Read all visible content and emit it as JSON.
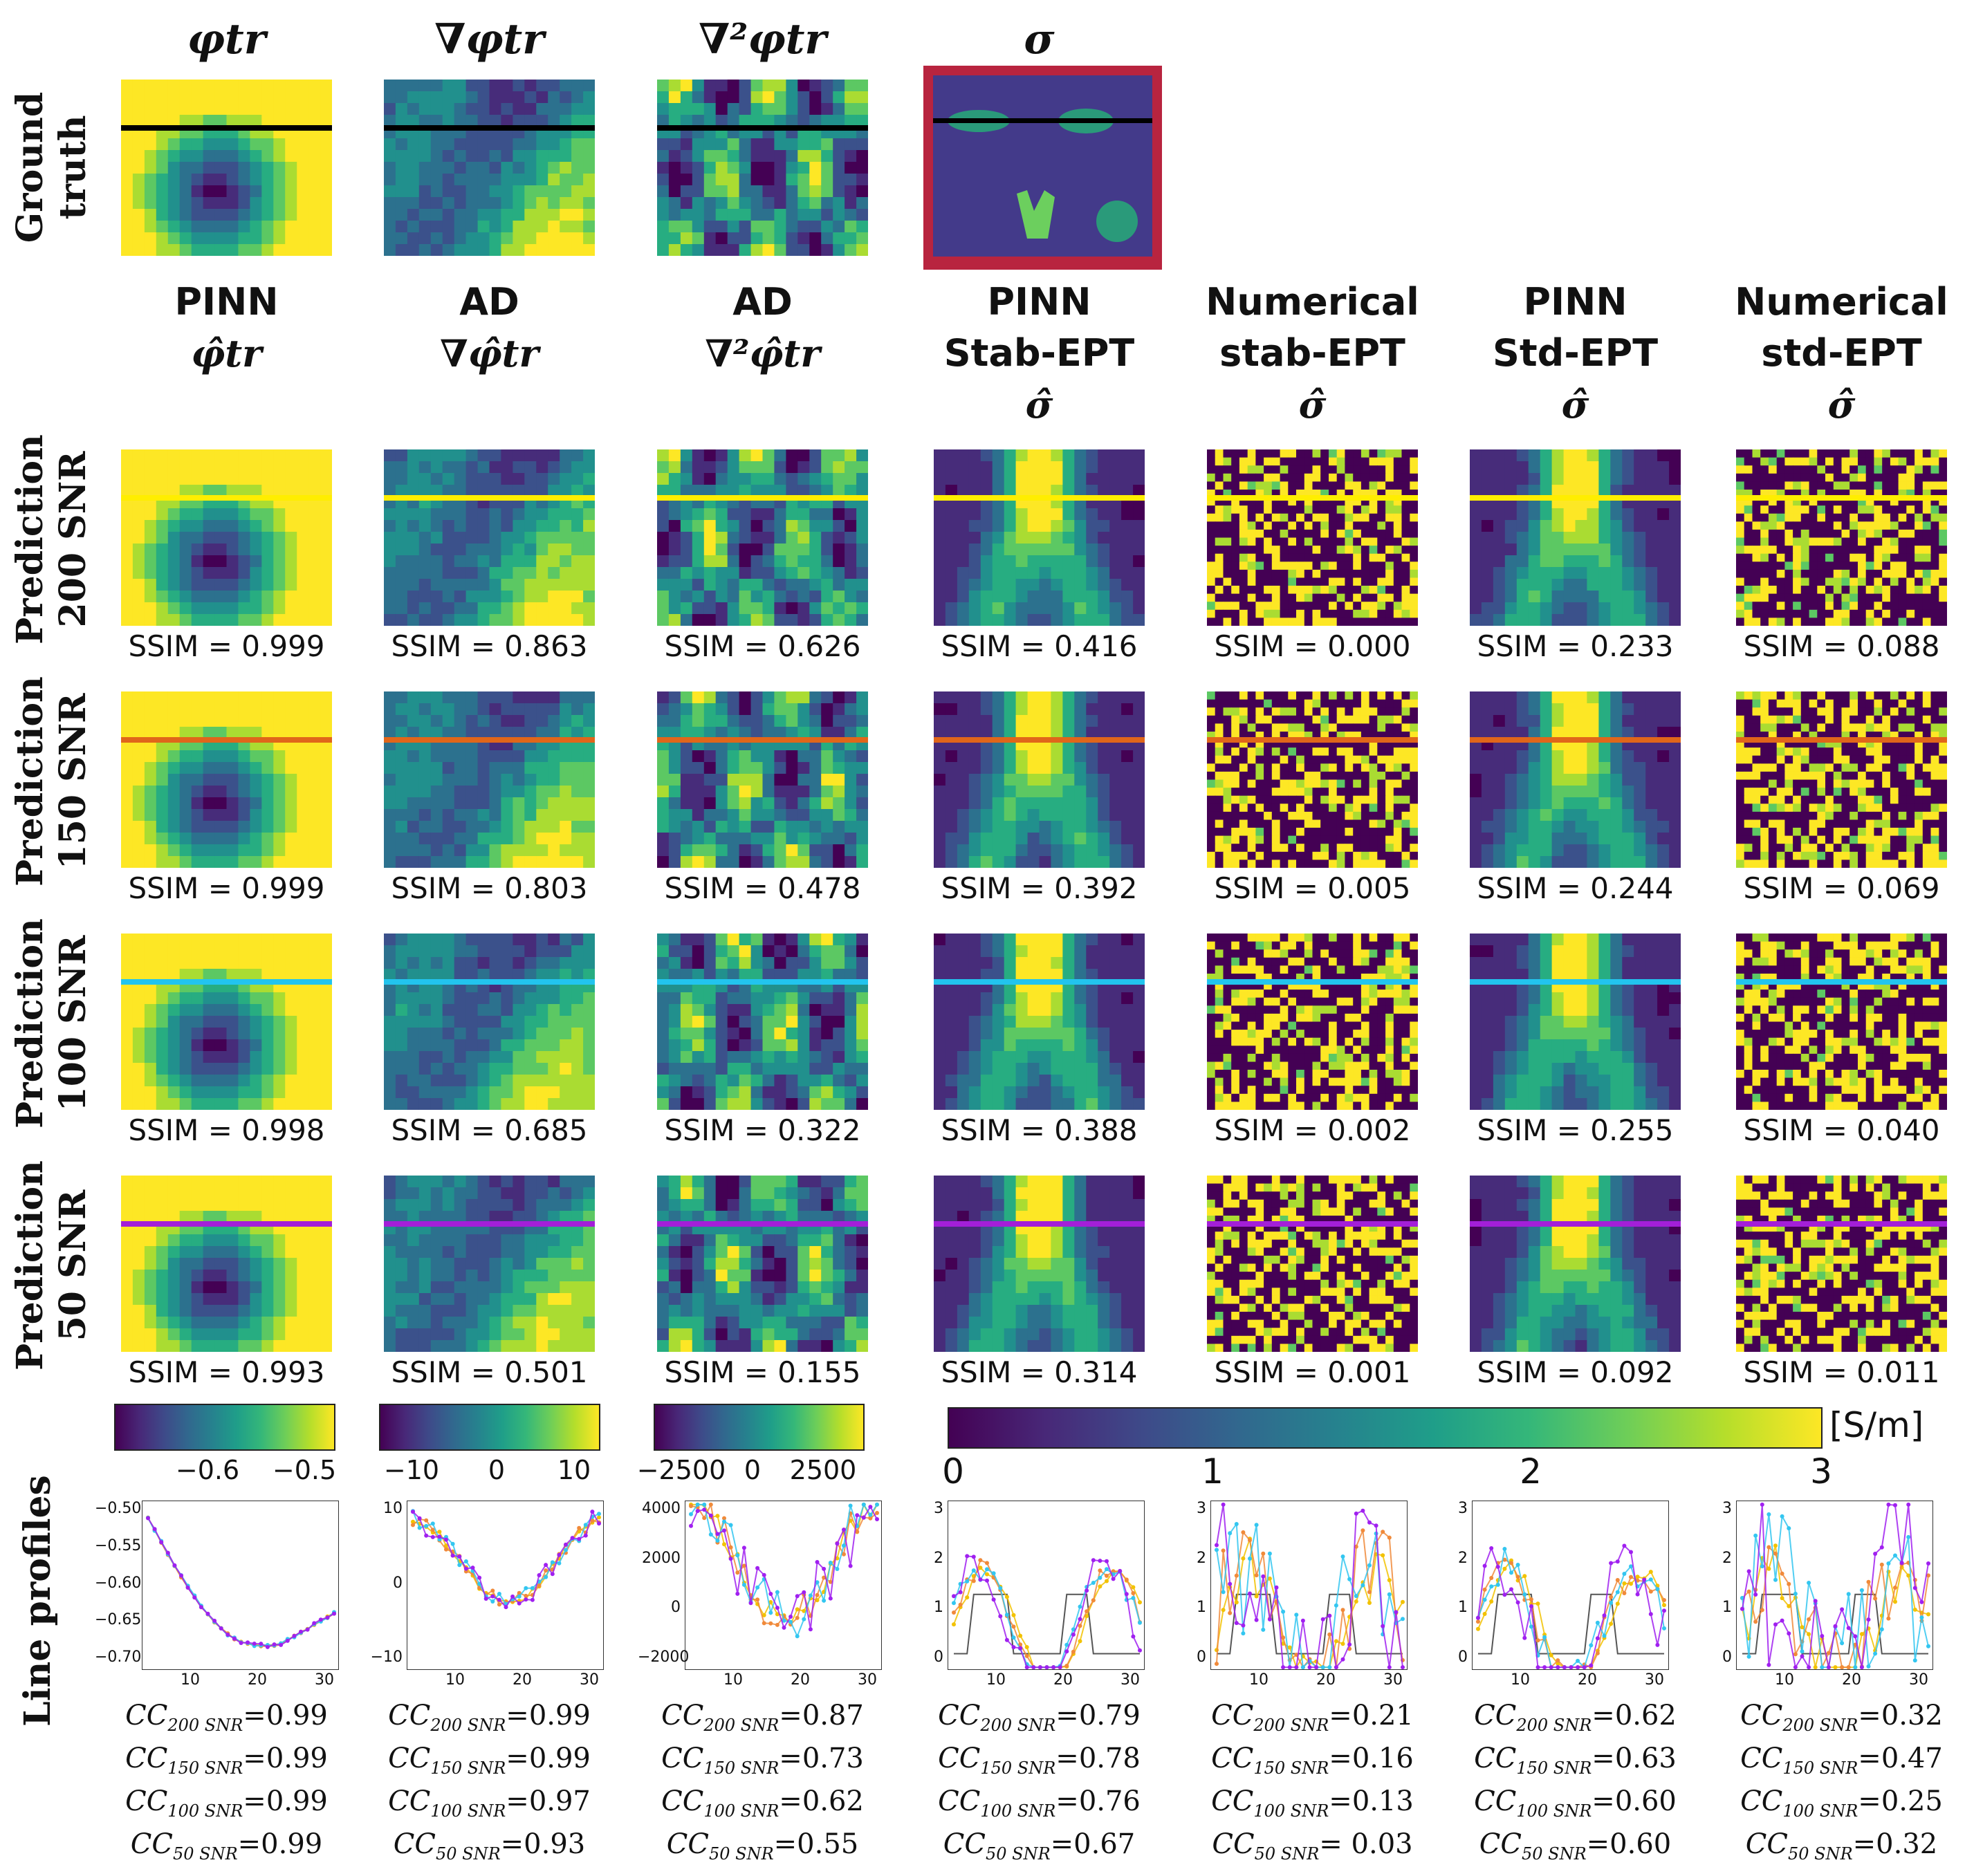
{
  "ground_truth": {
    "row_label": [
      "Ground",
      "truth"
    ],
    "headers": [
      "φtr",
      "∇φtr",
      "∇²φtr",
      "σ"
    ]
  },
  "columns": [
    {
      "line1": "",
      "line2": "PINN",
      "symbol": "φ̂tr"
    },
    {
      "line1": "",
      "line2": "AD",
      "symbol": "∇φ̂tr"
    },
    {
      "line1": "",
      "line2": "AD",
      "symbol": "∇²φ̂tr"
    },
    {
      "line1": "PINN",
      "line2": "Stab-EPT",
      "symbol": "σ̂"
    },
    {
      "line1": "Numerical",
      "line2": "stab-EPT",
      "symbol": "σ̂"
    },
    {
      "line1": "PINN",
      "line2": "Std-EPT",
      "symbol": "σ̂"
    },
    {
      "line1": "Numerical",
      "line2": "std-EPT",
      "symbol": "σ̂"
    }
  ],
  "rows": [
    {
      "label": [
        "Prediction",
        "200 SNR"
      ],
      "line_color": "#ffee00",
      "ssim": [
        "SSIM = 0.999",
        "SSIM = 0.863",
        "SSIM = 0.626",
        "SSIM = 0.416",
        "SSIM = 0.000",
        "SSIM = 0.233",
        "SSIM = 0.088"
      ]
    },
    {
      "label": [
        "Prediction",
        "150 SNR"
      ],
      "line_color": "#e0661a",
      "ssim": [
        "SSIM = 0.999",
        "SSIM = 0.803",
        "SSIM = 0.478",
        "SSIM = 0.392",
        "SSIM = 0.005",
        "SSIM = 0.244",
        "SSIM = 0.069"
      ]
    },
    {
      "label": [
        "Prediction",
        "100 SNR"
      ],
      "line_color": "#22c4ee",
      "ssim": [
        "SSIM = 0.998",
        "SSIM = 0.685",
        "SSIM = 0.322",
        "SSIM = 0.388",
        "SSIM = 0.002",
        "SSIM = 0.255",
        "SSIM = 0.040"
      ]
    },
    {
      "label": [
        "Prediction",
        "50 SNR"
      ],
      "line_color": "#a31fd8",
      "ssim": [
        "SSIM = 0.993",
        "SSIM = 0.501",
        "SSIM = 0.155",
        "SSIM = 0.314",
        "SSIM = 0.001",
        "SSIM = 0.092",
        "SSIM = 0.011"
      ]
    }
  ],
  "colorbars": [
    {
      "ticks": [
        "−0.6",
        "−0.5"
      ]
    },
    {
      "ticks": [
        "−10",
        "0",
        "10"
      ]
    },
    {
      "ticks": [
        "−2500",
        "0",
        "2500"
      ]
    },
    {
      "ticks": [
        "0",
        "1",
        "2",
        "3"
      ],
      "unit": "[S/m]"
    }
  ],
  "line_profiles": {
    "row_label": "Line profiles",
    "x_ticks": [
      "10",
      "20",
      "30"
    ],
    "y_ticks": [
      [
        "−0.50",
        "−0.55",
        "−0.60",
        "−0.65",
        "−0.70"
      ],
      [
        "10",
        "0",
        "−10"
      ],
      [
        "4000",
        "2000",
        "0",
        "−2000"
      ],
      [
        "3",
        "2",
        "1",
        "0"
      ],
      [
        "3",
        "2",
        "1",
        "0"
      ],
      [
        "3",
        "2",
        "1",
        "0"
      ],
      [
        "3",
        "2",
        "1",
        "0"
      ]
    ],
    "series_colors": {
      "gt": "#555555",
      "snr200": "#f2c200",
      "snr150": "#f08a3a",
      "snr100": "#33c6f0",
      "snr50": "#a020f0"
    }
  },
  "cc": {
    "labels": [
      "200 SNR",
      "150 SNR",
      "100 SNR",
      "50 SNR"
    ],
    "values": [
      [
        "=0.99",
        "=0.99",
        "=0.99",
        "=0.99"
      ],
      [
        "=0.99",
        "=0.99",
        "=0.97",
        "=0.93"
      ],
      [
        "=0.87",
        "=0.73",
        "=0.62",
        "=0.55"
      ],
      [
        "=0.79",
        "=0.78",
        "=0.76",
        "=0.67"
      ],
      [
        "=0.21",
        "=0.16",
        "=0.13",
        "= 0.03"
      ],
      [
        "=0.62",
        "=0.63",
        "=0.60",
        "=0.60"
      ],
      [
        "=0.32",
        "=0.47",
        "=0.25",
        "=0.32"
      ]
    ]
  }
}
